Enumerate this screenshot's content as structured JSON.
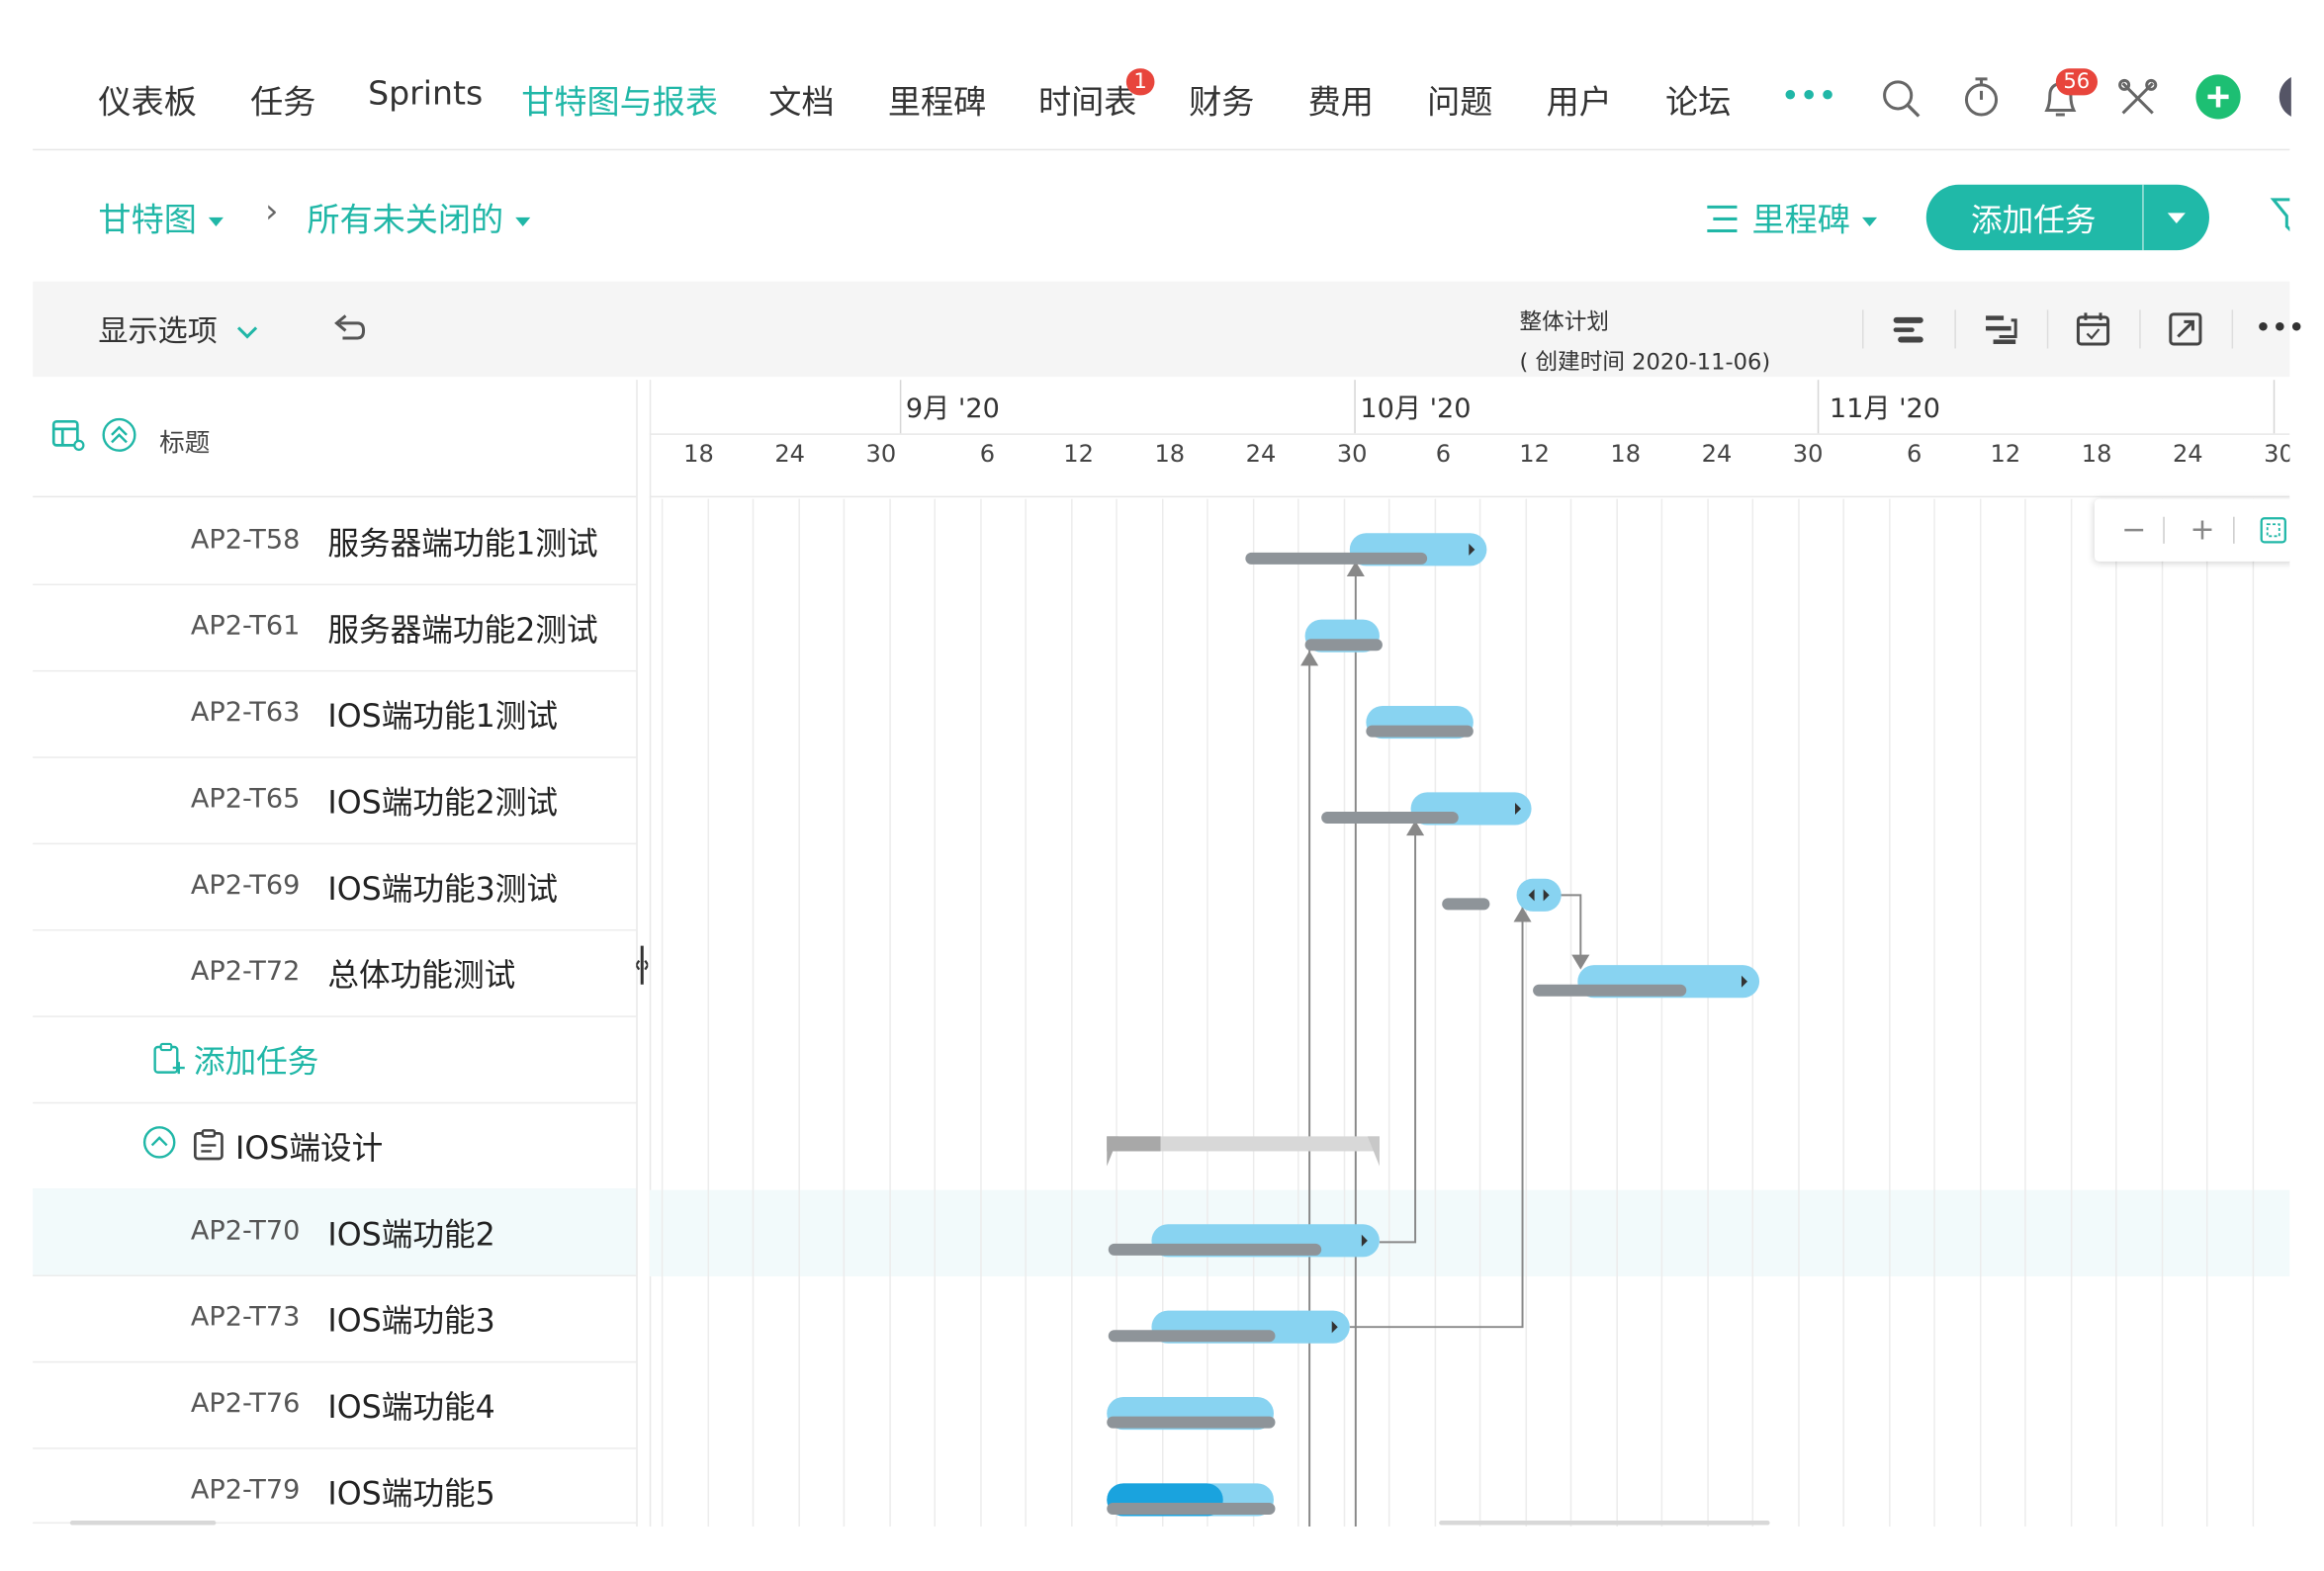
{
  "nav": {
    "items": [
      "仪表板",
      "任务",
      "Sprints",
      "甘特图与报表",
      "文档",
      "里程碑",
      "时间表",
      "财务",
      "费用",
      "问题",
      "用户",
      "论坛"
    ],
    "active": "甘特图与报表",
    "timesheet_badge": "1",
    "notification_badge": "56",
    "more": "•••"
  },
  "breadcrumb": {
    "view": "甘特图",
    "separator": "›",
    "filter": "所有未关闭的",
    "milestone_btn": "里程碑",
    "add_task": "添加任务"
  },
  "toolbar": {
    "display_options": "显示选项",
    "plan_title": "整体计划",
    "plan_created": "( 创建时间 2020-11-06)",
    "more": "•••"
  },
  "task_list": {
    "header_title": "标题",
    "rows": [
      {
        "key": "AP2-T58",
        "title": "服务器端功能1测试"
      },
      {
        "key": "AP2-T61",
        "title": "服务器端功能2测试"
      },
      {
        "key": "AP2-T63",
        "title": "IOS端功能1测试"
      },
      {
        "key": "AP2-T65",
        "title": "IOS端功能2测试"
      },
      {
        "key": "AP2-T69",
        "title": "IOS端功能3测试"
      },
      {
        "key": "AP2-T72",
        "title": "总体功能测试"
      },
      {
        "key": "",
        "title": "添加任务"
      },
      {
        "key": "",
        "title": "IOS端设计"
      },
      {
        "key": "AP2-T70",
        "title": "IOS端功能2"
      },
      {
        "key": "AP2-T73",
        "title": "IOS端功能3"
      },
      {
        "key": "AP2-T76",
        "title": "IOS端功能4"
      },
      {
        "key": "AP2-T79",
        "title": "IOS端功能5"
      }
    ],
    "selected_row": "AP2-T70"
  },
  "timeline": {
    "months": [
      "9月 '20",
      "10月 '20",
      "11月 '20"
    ],
    "days": [
      "18",
      "24",
      "30",
      "6",
      "12",
      "18",
      "24",
      "30",
      "6",
      "12",
      "18",
      "24",
      "30",
      "6",
      "12",
      "18",
      "24",
      "30"
    ],
    "zoom": {
      "minus": "−",
      "plus": "+"
    }
  },
  "colors": {
    "accent": "#20b7a7",
    "bar": "#88d3f1",
    "baseline": "#8e9499",
    "progress": "#1aa3de",
    "badge": "#e8453c"
  }
}
